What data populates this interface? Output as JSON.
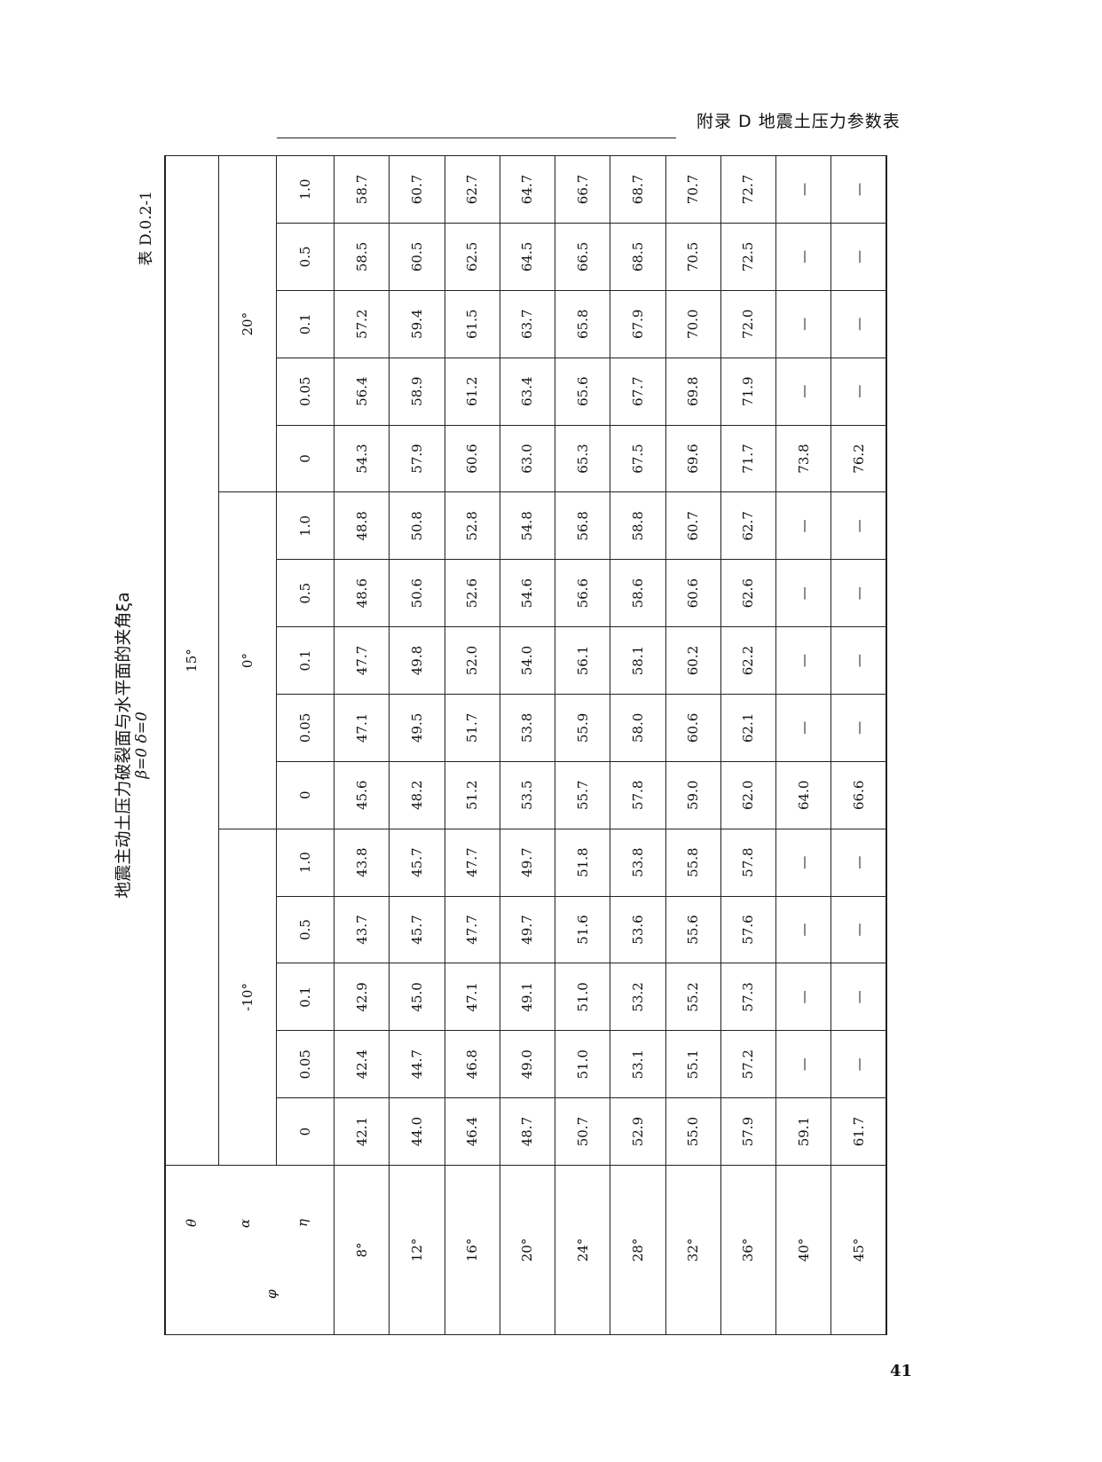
{
  "page_header": "附录 D  地震土压力参数表",
  "page_number": "41",
  "table": {
    "title": "地震主动土压力破裂面与水平面的夹角ξa",
    "conditions": "β=0    δ=0",
    "number": "表 D.0.2-1",
    "theta_label": "θ",
    "alpha_label": "α",
    "eta_label": "η",
    "phi_label": "φ",
    "theta_value": "15°",
    "alpha_values": [
      "-10°",
      "0°",
      "20°"
    ],
    "eta_values": [
      "0",
      "0.05",
      "0.1",
      "0.5",
      "1.0"
    ],
    "rows": [
      {
        "phi": "8°",
        "values": [
          "42.1",
          "42.4",
          "42.9",
          "43.7",
          "43.8",
          "45.6",
          "47.1",
          "47.7",
          "48.6",
          "48.8",
          "54.3",
          "56.4",
          "57.2",
          "58.5",
          "58.7"
        ]
      },
      {
        "phi": "12°",
        "values": [
          "44.0",
          "44.7",
          "45.0",
          "45.7",
          "45.7",
          "48.2",
          "49.5",
          "49.8",
          "50.6",
          "50.8",
          "57.9",
          "58.9",
          "59.4",
          "60.5",
          "60.7"
        ]
      },
      {
        "phi": "16°",
        "values": [
          "46.4",
          "46.8",
          "47.1",
          "47.7",
          "47.7",
          "51.2",
          "51.7",
          "52.0",
          "52.6",
          "52.8",
          "60.6",
          "61.2",
          "61.5",
          "62.5",
          "62.7"
        ]
      },
      {
        "phi": "20°",
        "values": [
          "48.7",
          "49.0",
          "49.1",
          "49.7",
          "49.7",
          "53.5",
          "53.8",
          "54.0",
          "54.6",
          "54.8",
          "63.0",
          "63.4",
          "63.7",
          "64.5",
          "64.7"
        ]
      },
      {
        "phi": "24°",
        "values": [
          "50.7",
          "51.0",
          "51.0",
          "51.6",
          "51.8",
          "55.7",
          "55.9",
          "56.1",
          "56.6",
          "56.8",
          "65.3",
          "65.6",
          "65.8",
          "66.5",
          "66.7"
        ]
      },
      {
        "phi": "28°",
        "values": [
          "52.9",
          "53.1",
          "53.2",
          "53.6",
          "53.8",
          "57.8",
          "58.0",
          "58.1",
          "58.6",
          "58.8",
          "67.5",
          "67.7",
          "67.9",
          "68.5",
          "68.7"
        ]
      },
      {
        "phi": "32°",
        "values": [
          "55.0",
          "55.1",
          "55.2",
          "55.6",
          "55.8",
          "59.0",
          "60.6",
          "60.2",
          "60.6",
          "60.7",
          "69.6",
          "69.8",
          "70.0",
          "70.5",
          "70.7"
        ]
      },
      {
        "phi": "36°",
        "values": [
          "57.9",
          "57.2",
          "57.3",
          "57.6",
          "57.8",
          "62.0",
          "62.1",
          "62.2",
          "62.6",
          "62.7",
          "71.7",
          "71.9",
          "72.0",
          "72.5",
          "72.7"
        ]
      },
      {
        "phi": "40°",
        "values": [
          "59.1",
          "—",
          "—",
          "—",
          "—",
          "64.0",
          "—",
          "—",
          "—",
          "—",
          "73.8",
          "—",
          "—",
          "—",
          "—"
        ]
      },
      {
        "phi": "45°",
        "values": [
          "61.7",
          "—",
          "—",
          "—",
          "—",
          "66.6",
          "—",
          "—",
          "—",
          "—",
          "76.2",
          "—",
          "—",
          "—",
          "—"
        ]
      }
    ]
  }
}
